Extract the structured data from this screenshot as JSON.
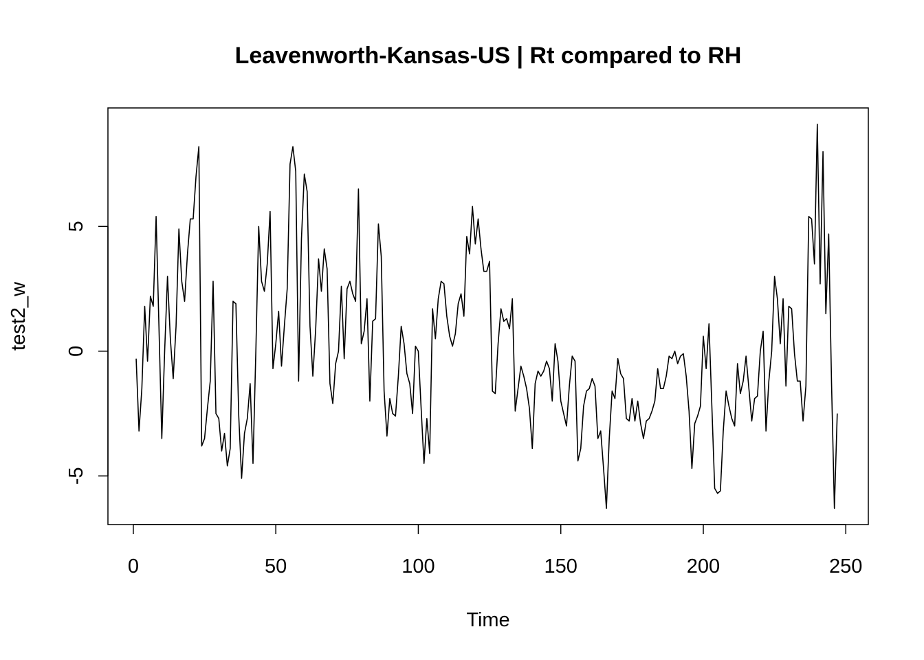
{
  "chart_data": {
    "type": "line",
    "title": "Leavenworth-Kansas-US | Rt compared to RH",
    "xlabel": "Time",
    "ylabel": "test2_w",
    "xlim": [
      -8.9,
      257.9
    ],
    "ylim": [
      -6.95,
      9.75
    ],
    "xticks": [
      0,
      50,
      100,
      150,
      200,
      250
    ],
    "xtick_labels": [
      "0",
      "50",
      "100",
      "150",
      "200",
      "250"
    ],
    "yticks": [
      -5,
      0,
      5
    ],
    "ytick_labels": [
      "-5",
      "0",
      "5"
    ],
    "grid": false,
    "line_color": "#000000",
    "series": [
      {
        "name": "test2_w",
        "x_start": 1,
        "values": [
          -0.3,
          -3.2,
          -1.5,
          1.8,
          -0.4,
          2.2,
          1.8,
          5.4,
          1.0,
          -3.5,
          0.0,
          3.0,
          0.5,
          -1.1,
          1.0,
          4.9,
          2.8,
          2.0,
          3.9,
          5.3,
          5.3,
          7.0,
          8.2,
          -3.8,
          -3.5,
          -2.3,
          -1.2,
          2.8,
          -2.5,
          -2.7,
          -4.0,
          -3.3,
          -4.6,
          -3.9,
          2.0,
          1.9,
          -2.6,
          -5.1,
          -3.3,
          -2.7,
          -1.3,
          -4.5,
          0.0,
          5.0,
          2.8,
          2.4,
          3.5,
          5.6,
          -0.7,
          0.3,
          1.6,
          -0.6,
          1.0,
          2.5,
          7.5,
          8.2,
          7.2,
          -1.2,
          4.5,
          7.1,
          6.4,
          1.0,
          -1.0,
          0.9,
          3.7,
          2.4,
          4.1,
          3.3,
          -1.3,
          -2.1,
          -0.5,
          0.0,
          2.6,
          -0.3,
          2.5,
          2.8,
          2.3,
          2.0,
          6.5,
          0.3,
          0.8,
          2.1,
          -2.0,
          1.2,
          1.3,
          5.1,
          3.8,
          -1.6,
          -3.4,
          -1.9,
          -2.5,
          -2.6,
          -1.0,
          1.0,
          0.3,
          -0.9,
          -1.3,
          -2.5,
          0.2,
          0.0,
          -2.3,
          -4.5,
          -2.7,
          -4.1,
          1.7,
          0.5,
          2.1,
          2.8,
          2.7,
          1.4,
          0.6,
          0.2,
          0.7,
          1.9,
          2.3,
          1.4,
          4.6,
          3.9,
          5.8,
          4.3,
          5.3,
          4.1,
          3.2,
          3.2,
          3.6,
          -1.6,
          -1.7,
          0.3,
          1.7,
          1.2,
          1.3,
          0.9,
          2.1,
          -2.4,
          -1.5,
          -0.6,
          -1.0,
          -1.5,
          -2.3,
          -3.9,
          -1.3,
          -0.8,
          -1.0,
          -0.8,
          -0.4,
          -0.7,
          -2.0,
          0.3,
          -0.4,
          -2.0,
          -2.5,
          -3.0,
          -1.4,
          -0.2,
          -0.4,
          -4.4,
          -3.9,
          -2.2,
          -1.6,
          -1.5,
          -1.1,
          -1.4,
          -3.5,
          -3.2,
          -4.7,
          -6.3,
          -3.5,
          -1.6,
          -1.9,
          -0.3,
          -0.9,
          -1.1,
          -2.7,
          -2.8,
          -1.9,
          -2.8,
          -2.0,
          -2.9,
          -3.5,
          -2.8,
          -2.7,
          -2.4,
          -2.0,
          -0.7,
          -1.5,
          -1.5,
          -1.0,
          -0.2,
          -0.3,
          0.0,
          -0.5,
          -0.2,
          -0.1,
          -1.0,
          -2.4,
          -4.7,
          -2.9,
          -2.6,
          -2.2,
          0.6,
          -0.7,
          1.1,
          -2.2,
          -5.5,
          -5.7,
          -5.6,
          -3.2,
          -1.6,
          -2.2,
          -2.7,
          -3.0,
          -0.5,
          -1.7,
          -1.2,
          -0.2,
          -1.5,
          -2.8,
          -1.9,
          -1.8,
          0.0,
          0.8,
          -3.2,
          -1.2,
          0.0,
          3.0,
          2.1,
          0.3,
          2.1,
          -1.4,
          1.8,
          1.7,
          -0.1,
          -1.2,
          -1.2,
          -2.8,
          -1.4,
          5.4,
          5.3,
          3.5,
          9.1,
          2.7,
          8.0,
          1.5,
          4.7,
          -1.3,
          -6.3,
          -2.5
        ]
      }
    ]
  }
}
